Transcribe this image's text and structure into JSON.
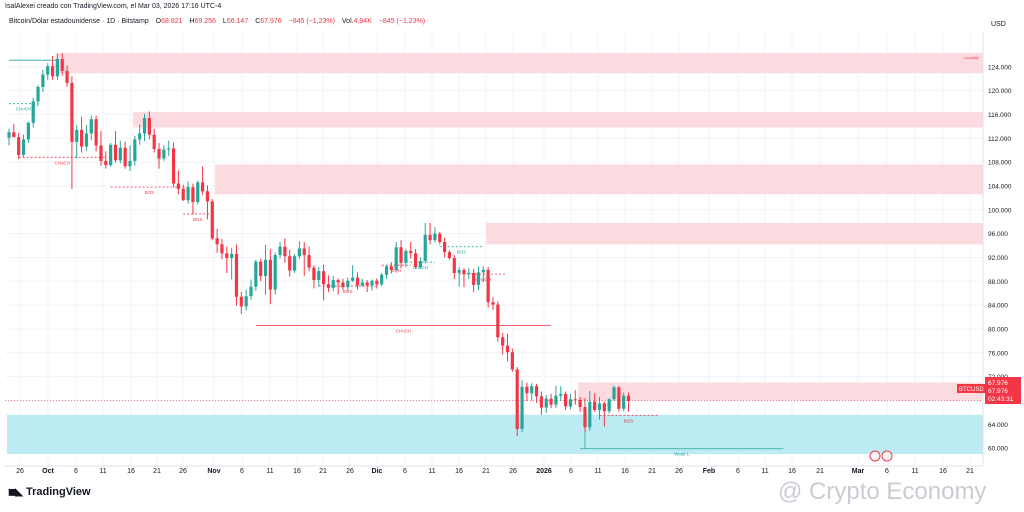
{
  "header": {
    "credit": "IsalAlexei creado con TradingView.com, el Mar 03, 2026 17:16 UTC-4",
    "symbol_title": "Bitcoin/Dólar estadounidense · 1D · Bitstamp",
    "open_label": "O",
    "open_value": "68.821",
    "high_label": "H",
    "high_value": "69.256",
    "low_label": "L",
    "low_value": "66.147",
    "close_label": "C",
    "close_value": "67.976",
    "change_value": "−845 (−1,23%)",
    "volume_label": "Vol.",
    "volume_value": "4,94K",
    "volume_change": "−845 (−1,23%)"
  },
  "price_axis": {
    "currency": "USD"
  },
  "price_tag": {
    "symbol": "BTCUSD",
    "price": "67.976",
    "countdown": "02:43:31"
  },
  "footer": {
    "brand": "TradingView",
    "watermark": "@ Crypto Economy"
  },
  "chart_data": {
    "type": "candlestick",
    "timeframe": "1D",
    "grid": true,
    "ylim": [
      57000,
      130000
    ],
    "y_ticks": [
      "60.000",
      "64.000",
      "68.000",
      "72.000",
      "76.000",
      "80.000",
      "84.000",
      "88.000",
      "92.000",
      "96.000",
      "100.000",
      "104.000",
      "108.000",
      "112.000",
      "116.000",
      "120.000",
      "124.000"
    ],
    "x_ticks": [
      "26",
      "Oct",
      "6",
      "11",
      "16",
      "21",
      "26",
      "Nov",
      "6",
      "11",
      "16",
      "21",
      "26",
      "Dic",
      "6",
      "11",
      "16",
      "21",
      "26",
      "2026",
      "6",
      "11",
      "16",
      "21",
      "26",
      "Feb",
      "6",
      "11",
      "16",
      "21",
      "Mar",
      "6",
      "11",
      "16",
      "21"
    ],
    "candles": [
      [
        112100,
        113600,
        110800,
        113000
      ],
      [
        113000,
        114400,
        112200,
        112200
      ],
      [
        112200,
        112900,
        108500,
        109200
      ],
      [
        109200,
        112600,
        108800,
        111800
      ],
      [
        111800,
        114800,
        111200,
        114600
      ],
      [
        114600,
        118800,
        113800,
        118200
      ],
      [
        118200,
        120900,
        117400,
        120600
      ],
      [
        120600,
        123500,
        119800,
        122700
      ],
      [
        122700,
        124600,
        121800,
        124100
      ],
      [
        124100,
        125800,
        121800,
        122400
      ],
      [
        122400,
        126200,
        121800,
        125300
      ],
      [
        125300,
        126300,
        122500,
        123300
      ],
      [
        123300,
        124200,
        120600,
        121300
      ],
      [
        121300,
        122400,
        103500,
        111400
      ],
      [
        111400,
        114200,
        108600,
        113400
      ],
      [
        113400,
        115600,
        109600,
        110600
      ],
      [
        110600,
        114200,
        109900,
        112800
      ],
      [
        112800,
        115800,
        111700,
        115200
      ],
      [
        115200,
        115800,
        109800,
        110800
      ],
      [
        110800,
        113200,
        107400,
        108200
      ],
      [
        108200,
        109800,
        106900,
        107500
      ],
      [
        107500,
        111200,
        107200,
        110900
      ],
      [
        110900,
        113200,
        107900,
        108300
      ],
      [
        108300,
        111600,
        107800,
        110400
      ],
      [
        110400,
        111400,
        106900,
        107300
      ],
      [
        107300,
        110800,
        106500,
        108200
      ],
      [
        108200,
        112400,
        107400,
        111800
      ],
      [
        111800,
        114300,
        110900,
        112800
      ],
      [
        112800,
        116100,
        111500,
        115400
      ],
      [
        115400,
        116500,
        111800,
        112600
      ],
      [
        112600,
        113600,
        109600,
        110200
      ],
      [
        110200,
        111200,
        106900,
        108600
      ],
      [
        108600,
        110800,
        108200,
        110100
      ],
      [
        110100,
        111600,
        109000,
        110300
      ],
      [
        110300,
        111300,
        103800,
        104400
      ],
      [
        104400,
        106600,
        102600,
        103500
      ],
      [
        103500,
        104200,
        101500,
        101600
      ],
      [
        101600,
        104800,
        101000,
        103800
      ],
      [
        103800,
        104400,
        99200,
        101300
      ],
      [
        101300,
        104900,
        100900,
        104600
      ],
      [
        104600,
        107300,
        102500,
        103100
      ],
      [
        103100,
        104100,
        98400,
        101400
      ],
      [
        101400,
        101800,
        94900,
        95200
      ],
      [
        95200,
        96800,
        92800,
        94200
      ],
      [
        94200,
        95100,
        91700,
        92700
      ],
      [
        92700,
        93800,
        89400,
        91900
      ],
      [
        91900,
        93600,
        88300,
        92600
      ],
      [
        92600,
        94200,
        83900,
        85400
      ],
      [
        85400,
        86200,
        82500,
        83800
      ],
      [
        83800,
        86600,
        83100,
        85500
      ],
      [
        85500,
        88300,
        84900,
        87100
      ],
      [
        87100,
        91600,
        86400,
        91300
      ],
      [
        91300,
        91800,
        88000,
        88900
      ],
      [
        88900,
        94100,
        85700,
        91600
      ],
      [
        91600,
        93400,
        84200,
        86600
      ],
      [
        86600,
        92800,
        85800,
        92400
      ],
      [
        92400,
        94600,
        91800,
        93800
      ],
      [
        93800,
        95200,
        91100,
        92200
      ],
      [
        92200,
        93300,
        88800,
        89800
      ],
      [
        89800,
        92600,
        89400,
        92200
      ],
      [
        92200,
        94700,
        91800,
        93500
      ],
      [
        93500,
        94600,
        88900,
        92400
      ],
      [
        92400,
        93800,
        89700,
        90300
      ],
      [
        90300,
        90700,
        86800,
        88200
      ],
      [
        88200,
        90400,
        87100,
        89700
      ],
      [
        89700,
        90800,
        84800,
        87500
      ],
      [
        87500,
        89000,
        86200,
        86900
      ],
      [
        86900,
        88900,
        86300,
        88200
      ],
      [
        88200,
        88500,
        85800,
        87800
      ],
      [
        87800,
        88400,
        86500,
        87000
      ],
      [
        87000,
        88600,
        86300,
        88100
      ],
      [
        88100,
        90700,
        87900,
        88600
      ],
      [
        88600,
        89500,
        86600,
        87300
      ],
      [
        87300,
        88400,
        87100,
        87800
      ],
      [
        87800,
        88200,
        86200,
        87300
      ],
      [
        87300,
        88300,
        86400,
        88100
      ],
      [
        88100,
        88500,
        86800,
        87500
      ],
      [
        87500,
        89400,
        87200,
        89100
      ],
      [
        89100,
        90700,
        88400,
        90500
      ],
      [
        90500,
        91200,
        89300,
        89900
      ],
      [
        89900,
        94600,
        89700,
        93700
      ],
      [
        93700,
        94900,
        90200,
        91100
      ],
      [
        91100,
        93400,
        90400,
        93100
      ],
      [
        93100,
        94600,
        91800,
        92700
      ],
      [
        92700,
        93400,
        90100,
        90400
      ],
      [
        90400,
        92000,
        90100,
        91400
      ],
      [
        91400,
        97800,
        91000,
        95800
      ],
      [
        95800,
        97800,
        94200,
        94900
      ],
      [
        94900,
        97100,
        94500,
        96000
      ],
      [
        96000,
        96300,
        94200,
        94600
      ],
      [
        94600,
        95300,
        92000,
        92900
      ],
      [
        92900,
        93200,
        91600,
        91900
      ],
      [
        91900,
        92400,
        88400,
        89400
      ],
      [
        89400,
        90400,
        87100,
        89900
      ],
      [
        89900,
        90200,
        87000,
        89200
      ],
      [
        89200,
        90200,
        88400,
        89400
      ],
      [
        89400,
        90100,
        86200,
        87400
      ],
      [
        87400,
        90500,
        86500,
        89500
      ],
      [
        89500,
        90500,
        87800,
        89900
      ],
      [
        89900,
        90400,
        83600,
        84500
      ],
      [
        84500,
        85300,
        83200,
        84100
      ],
      [
        84100,
        84600,
        77900,
        78600
      ],
      [
        78600,
        79300,
        75700,
        77200
      ],
      [
        77200,
        79200,
        74600,
        76100
      ],
      [
        76100,
        76700,
        72800,
        73200
      ],
      [
        73200,
        73600,
        62000,
        63200
      ],
      [
        63200,
        71400,
        62700,
        70300
      ],
      [
        70300,
        71000,
        67900,
        69200
      ],
      [
        69200,
        70900,
        68000,
        70400
      ],
      [
        70400,
        70800,
        67600,
        68700
      ],
      [
        68700,
        69500,
        65600,
        66800
      ],
      [
        66800,
        68900,
        65900,
        68300
      ],
      [
        68300,
        69100,
        66700,
        67300
      ],
      [
        67300,
        70500,
        66700,
        68800
      ],
      [
        68800,
        70400,
        67900,
        69100
      ],
      [
        69100,
        69500,
        66400,
        67000
      ],
      [
        67000,
        69100,
        66500,
        68200
      ],
      [
        68200,
        69700,
        67300,
        68100
      ],
      [
        68100,
        68600,
        66100,
        66900
      ],
      [
        66900,
        68400,
        62700,
        63500
      ],
      [
        63500,
        69600,
        62900,
        67800
      ],
      [
        67800,
        69200,
        66100,
        66400
      ],
      [
        66400,
        68600,
        64800,
        67500
      ],
      [
        67500,
        67800,
        63600,
        66200
      ],
      [
        66200,
        68400,
        65800,
        68200
      ],
      [
        68200,
        70500,
        67900,
        70200
      ],
      [
        70200,
        70400,
        66100,
        66600
      ],
      [
        66600,
        69300,
        66200,
        68800
      ],
      [
        68800,
        69300,
        66100,
        67900
      ]
    ],
    "zones": [
      {
        "from_index": 10,
        "y1": 122900,
        "y2": 126300,
        "color": "#fcdbe0",
        "label": "Liquidity"
      },
      {
        "from_index": 26,
        "y1": 113800,
        "y2": 116400,
        "color": "#fcdbe0",
        "label": ""
      },
      {
        "from_index": 43,
        "y1": 102600,
        "y2": 107600,
        "color": "#fcdbe0",
        "label": ""
      },
      {
        "from_index": 99,
        "y1": 94200,
        "y2": 97800,
        "color": "#fcdbe0",
        "label": ""
      },
      {
        "from_index": 118,
        "y1": 68000,
        "y2": 71000,
        "color": "#fcdbe0",
        "label": ""
      },
      {
        "from_index": 0,
        "y1": 59000,
        "y2": 65600,
        "color": "#bdebf3",
        "label": ""
      }
    ],
    "levels": [
      {
        "i1": 0,
        "i2": 10,
        "y": 125100,
        "color": "#26a69a",
        "style": "solid",
        "label": ""
      },
      {
        "i1": 0,
        "i2": 6,
        "y": 117800,
        "color": "#26a69a",
        "style": "dashed",
        "label": "CHoCH"
      },
      {
        "i1": 2,
        "i2": 20,
        "y": 108800,
        "color": "#f23645",
        "style": "dashed",
        "label": "CHoCH"
      },
      {
        "i1": 21,
        "i2": 37,
        "y": 103800,
        "color": "#f23645",
        "style": "dashed",
        "label": "BOS"
      },
      {
        "i1": 36,
        "i2": 42,
        "y": 99300,
        "color": "#f23645",
        "style": "dashed",
        "label": "BOS"
      },
      {
        "i1": 51,
        "i2": 112,
        "y": 80600,
        "color": "#f23645",
        "style": "solid",
        "label": "CHoCH"
      },
      {
        "i1": 64,
        "i2": 76,
        "y": 87200,
        "color": "#f23645",
        "style": "dashed",
        "label": "BOS"
      },
      {
        "i1": 77,
        "i2": 83,
        "y": 90700,
        "color": "#f23645",
        "style": "dashed",
        "label": "EQH"
      },
      {
        "i1": 82,
        "i2": 88,
        "y": 91200,
        "color": "#26a69a",
        "style": "dashed",
        "label": "CHoCH"
      },
      {
        "i1": 89,
        "i2": 98,
        "y": 93800,
        "color": "#26a69a",
        "style": "dashed",
        "label": "BOS"
      },
      {
        "i1": 93,
        "i2": 103,
        "y": 89200,
        "color": "#f23645",
        "style": "dashed",
        "label": "CHoCH"
      },
      {
        "i1": 122,
        "i2": 134,
        "y": 65500,
        "color": "#f23645",
        "style": "dashed",
        "label": "BOS"
      },
      {
        "i1": 118,
        "i2": 160,
        "y": 59900,
        "color": "#26a69a",
        "style": "solid",
        "label": "Weak L"
      }
    ],
    "last_price": 67976
  }
}
